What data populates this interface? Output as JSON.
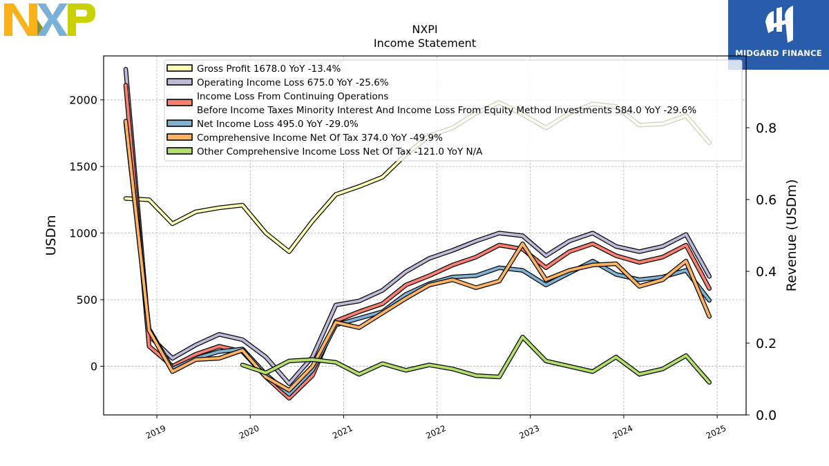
{
  "branding": {
    "nxp_logo_text": "NXP",
    "midgard_text": "MIDGARD FINANCE",
    "midgard_color": "#2a5cac"
  },
  "chart_data": {
    "type": "line",
    "title": "NXPI",
    "subtitle": "Income Statement",
    "ylabel": "USDm",
    "ylabel_right": "Revenue (USDm)",
    "ylim": [
      -365,
      2330
    ],
    "ylim_right": [
      0.0,
      1.0
    ],
    "xlim": [
      2018.43,
      2025.31
    ],
    "y_ticks": [
      0,
      500,
      1000,
      1500,
      2000
    ],
    "y_ticks_right": [
      "0.0",
      "0.2",
      "0.4",
      "0.6",
      "0.8"
    ],
    "x_ticks": [
      "2019",
      "2020",
      "2021",
      "2022",
      "2023",
      "2024",
      "2025"
    ],
    "grid": true,
    "legend_position": "top",
    "series": [
      {
        "name": "Gross Profit  1678.0 YoY -13.4%",
        "color": "#ffffb3",
        "x": [
          "2018-09",
          "2018-12",
          "2019-03",
          "2019-06",
          "2019-09",
          "2019-12",
          "2020-03",
          "2020-06",
          "2020-09",
          "2020-12",
          "2021-03",
          "2021-06",
          "2021-09",
          "2021-12",
          "2022-03",
          "2022-06",
          "2022-09",
          "2022-12",
          "2023-03",
          "2023-06",
          "2023-09",
          "2023-12",
          "2024-03",
          "2024-06",
          "2024-09",
          "2024-12"
        ],
        "values": [
          1260,
          1250,
          1070,
          1160,
          1190,
          1210,
          1000,
          860,
          1090,
          1290,
          1350,
          1420,
          1590,
          1730,
          1790,
          1900,
          1980,
          1890,
          1790,
          1900,
          1970,
          1950,
          1810,
          1820,
          1880,
          1678
        ]
      },
      {
        "name": "Operating Income Loss  675.0 YoY -25.6%",
        "color": "#bebada",
        "x": [
          "2018-09",
          "2018-12",
          "2019-03",
          "2019-06",
          "2019-09",
          "2019-12",
          "2020-03",
          "2020-06",
          "2020-09",
          "2020-12",
          "2021-03",
          "2021-06",
          "2021-09",
          "2021-12",
          "2022-03",
          "2022-06",
          "2022-09",
          "2022-12",
          "2023-03",
          "2023-06",
          "2023-09",
          "2023-12",
          "2024-03",
          "2024-06",
          "2024-09",
          "2024-12"
        ],
        "values": [
          2230,
          230,
          60,
          160,
          240,
          200,
          70,
          -130,
          70,
          460,
          490,
          570,
          710,
          810,
          870,
          940,
          1000,
          980,
          830,
          940,
          1000,
          900,
          860,
          900,
          990,
          675
        ]
      },
      {
        "name": "Income Loss From Continuing Operations\nBefore Income Taxes Minority Interest And Income Loss From Equity Method Investments  584.0 YoY -29.6%",
        "color": "#fb8072",
        "x": [
          "2018-09",
          "2018-12",
          "2019-03",
          "2019-06",
          "2019-09",
          "2019-12",
          "2020-03",
          "2020-06",
          "2020-09",
          "2020-12",
          "2021-03",
          "2021-06",
          "2021-09",
          "2021-12",
          "2022-03",
          "2022-06",
          "2022-09",
          "2022-12",
          "2023-03",
          "2023-06",
          "2023-09",
          "2023-12",
          "2024-03",
          "2024-06",
          "2024-09",
          "2024-12"
        ],
        "values": [
          2110,
          150,
          0,
          90,
          150,
          110,
          -80,
          -240,
          -70,
          340,
          410,
          470,
          610,
          680,
          760,
          820,
          910,
          880,
          740,
          860,
          920,
          830,
          780,
          820,
          910,
          584
        ]
      },
      {
        "name": "Net Income Loss  495.0 YoY -29.0%",
        "color": "#80b1d3",
        "x": [
          "2018-09",
          "2018-12",
          "2019-03",
          "2019-06",
          "2019-09",
          "2019-12",
          "2020-03",
          "2020-06",
          "2020-09",
          "2020-12",
          "2021-03",
          "2021-06",
          "2021-09",
          "2021-12",
          "2022-03",
          "2022-06",
          "2022-09",
          "2022-12",
          "2023-03",
          "2023-06",
          "2023-09",
          "2023-12",
          "2024-03",
          "2024-06",
          "2024-09",
          "2024-12"
        ],
        "values": [
          1830,
          280,
          -20,
          60,
          110,
          130,
          -60,
          -210,
          -30,
          310,
          360,
          410,
          540,
          620,
          670,
          680,
          740,
          720,
          610,
          700,
          790,
          690,
          650,
          670,
          720,
          495
        ]
      },
      {
        "name": "Comprehensive Income Net Of Tax  374.0 YoY -49.9%",
        "color": "#fdb462",
        "x": [
          "2018-09",
          "2018-12",
          "2019-03",
          "2019-06",
          "2019-09",
          "2019-12",
          "2020-03",
          "2020-06",
          "2020-09",
          "2020-12",
          "2021-03",
          "2021-06",
          "2021-09",
          "2021-12",
          "2022-03",
          "2022-06",
          "2022-09",
          "2022-12",
          "2023-03",
          "2023-06",
          "2023-09",
          "2023-12",
          "2024-03",
          "2024-06",
          "2024-09",
          "2024-12"
        ],
        "values": [
          1840,
          270,
          -40,
          50,
          60,
          120,
          -80,
          -180,
          0,
          330,
          290,
          400,
          510,
          610,
          650,
          590,
          640,
          920,
          650,
          720,
          760,
          770,
          600,
          650,
          790,
          374
        ]
      },
      {
        "name": "Other Comprehensive Income Loss Net Of Tax  -121.0 YoY N/A",
        "color": "#b3de69",
        "x": [
          "2019-12",
          "2020-03",
          "2020-06",
          "2020-09",
          "2020-12",
          "2021-03",
          "2021-06",
          "2021-09",
          "2021-12",
          "2022-03",
          "2022-06",
          "2022-09",
          "2022-12",
          "2023-03",
          "2023-06",
          "2023-09",
          "2023-12",
          "2024-03",
          "2024-06",
          "2024-09",
          "2024-12"
        ],
        "values": [
          10,
          -50,
          40,
          50,
          30,
          -60,
          20,
          -30,
          10,
          -20,
          -70,
          -80,
          220,
          40,
          0,
          -40,
          70,
          -60,
          -20,
          80,
          -121
        ]
      }
    ]
  }
}
